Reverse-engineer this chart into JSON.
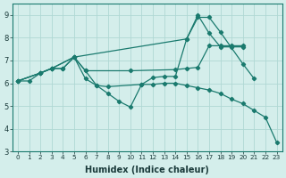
{
  "xlabel": "Humidex (Indice chaleur)",
  "bg_color": "#d4eeeb",
  "grid_color": "#b0d8d4",
  "line_color": "#1a7a6e",
  "xlim": [
    -0.5,
    23.5
  ],
  "ylim": [
    3,
    9.5
  ],
  "xticks": [
    0,
    1,
    2,
    3,
    4,
    5,
    6,
    7,
    8,
    9,
    10,
    11,
    12,
    13,
    14,
    15,
    16,
    17,
    18,
    19,
    20,
    21,
    22,
    23
  ],
  "yticks": [
    3,
    4,
    5,
    6,
    7,
    8,
    9
  ],
  "series": [
    {
      "x": [
        0,
        1,
        2,
        3,
        4,
        5,
        6,
        7,
        8,
        9,
        10,
        11,
        12,
        13,
        14,
        15,
        16,
        17,
        18,
        19,
        20,
        21,
        22,
        23
      ],
      "y": [
        6.1,
        6.1,
        6.45,
        6.65,
        6.65,
        7.15,
        6.2,
        5.9,
        5.55,
        5.2,
        4.95,
        5.95,
        5.95,
        6.0,
        6.0,
        5.9,
        5.8,
        5.7,
        5.55,
        5.3,
        5.1,
        4.8,
        4.5,
        3.4
      ]
    },
    {
      "x": [
        0,
        2,
        3,
        4,
        5,
        6,
        7,
        8,
        11,
        12,
        13,
        14,
        15,
        16,
        17,
        18,
        20,
        21
      ],
      "y": [
        6.1,
        6.45,
        6.65,
        6.65,
        7.15,
        6.55,
        5.9,
        5.85,
        5.95,
        6.25,
        6.3,
        6.3,
        7.95,
        8.9,
        8.9,
        8.25,
        6.85,
        6.2
      ]
    },
    {
      "x": [
        0,
        2,
        3,
        5,
        15,
        16,
        17,
        18,
        19,
        20
      ],
      "y": [
        6.1,
        6.45,
        6.65,
        7.15,
        7.95,
        9.0,
        8.2,
        7.6,
        7.6,
        7.6
      ]
    },
    {
      "x": [
        0,
        2,
        3,
        5,
        6,
        10,
        14,
        15,
        16,
        17,
        18,
        19,
        20
      ],
      "y": [
        6.1,
        6.45,
        6.65,
        7.15,
        6.55,
        6.55,
        6.6,
        6.65,
        6.7,
        7.65,
        7.65,
        7.65,
        7.65
      ]
    }
  ]
}
